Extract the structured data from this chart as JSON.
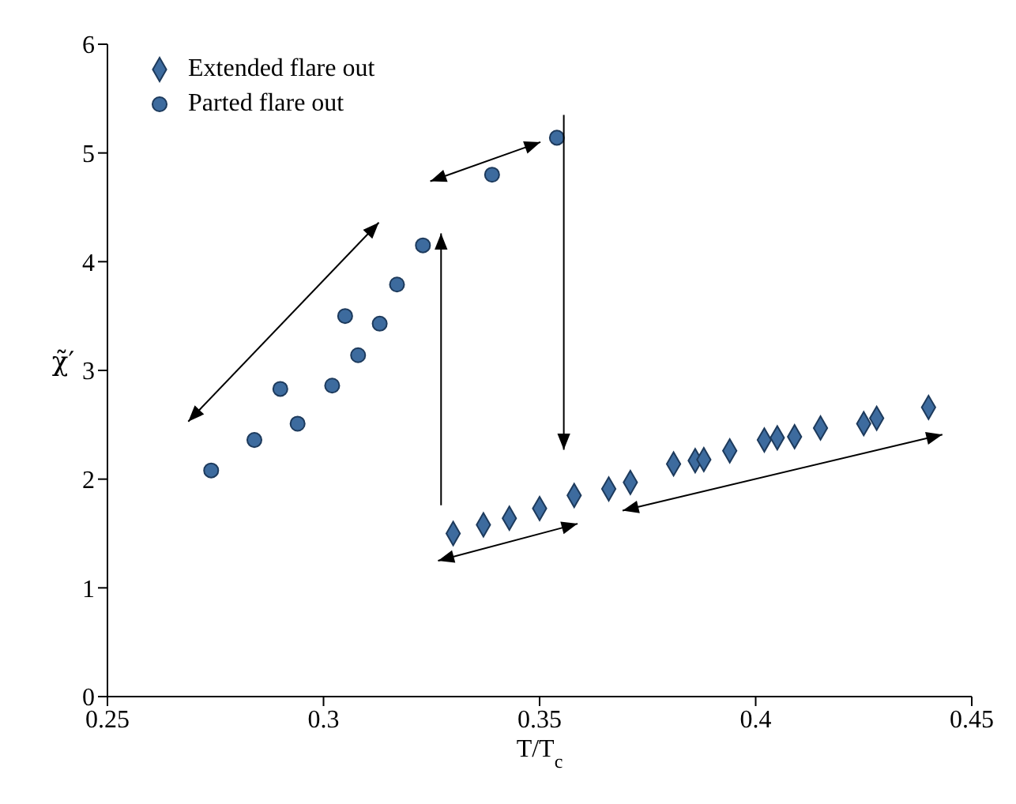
{
  "chart_data": {
    "type": "scatter",
    "xlabel": "T/T$_{c}$",
    "ylabel": "χ̃′",
    "xlim": [
      0.25,
      0.45
    ],
    "xticks": [
      0.25,
      0.3,
      0.35,
      0.4,
      0.45
    ],
    "ylim": [
      0,
      6
    ],
    "yticks": [
      0,
      1,
      2,
      3,
      4,
      5,
      6
    ],
    "grid": false,
    "legend": "top left",
    "series": [
      {
        "name": "Extended flare out",
        "color": "#3d6b9e",
        "marker": "diamond",
        "x": [
          0.33,
          0.337,
          0.343,
          0.35,
          0.358,
          0.366,
          0.371,
          0.381,
          0.386,
          0.388,
          0.394,
          0.402,
          0.405,
          0.409,
          0.415,
          0.425,
          0.428,
          0.44
        ],
        "values": [
          1.5,
          1.58,
          1.64,
          1.73,
          1.85,
          1.91,
          1.97,
          2.14,
          2.17,
          2.18,
          2.26,
          2.36,
          2.38,
          2.39,
          2.47,
          2.51,
          2.56,
          2.66
        ]
      },
      {
        "name": "Parted flare out",
        "color": "#3d6b9e",
        "marker": "circle",
        "x": [
          0.274,
          0.284,
          0.29,
          0.294,
          0.302,
          0.305,
          0.308,
          0.313,
          0.317,
          0.323,
          0.339,
          0.354
        ],
        "values": [
          2.08,
          2.36,
          2.83,
          2.51,
          2.86,
          3.5,
          3.14,
          3.43,
          3.79,
          4.15,
          4.8,
          5.14
        ]
      }
    ]
  }
}
